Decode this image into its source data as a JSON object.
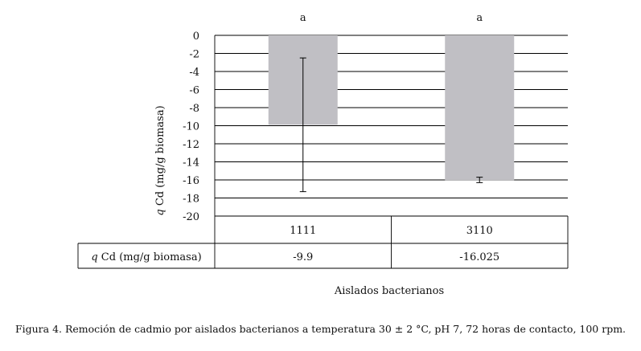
{
  "chart_data": {
    "type": "bar",
    "categories": [
      "1111",
      "3110"
    ],
    "series": [
      {
        "name": "q Cd (mg/g biomasa)",
        "values": [
          -9.9,
          -16.025
        ],
        "color": "#c0bfc4"
      }
    ],
    "error_bars": {
      "low": [
        -17.3,
        -16.3
      ],
      "high": [
        -2.5,
        -15.7
      ]
    },
    "significance_letters": [
      "a",
      "a"
    ],
    "ylim": [
      -20,
      0
    ],
    "yticks": [
      0,
      -2,
      -4,
      -6,
      -8,
      -10,
      -12,
      -14,
      -16,
      -18,
      -20
    ],
    "ylabel_prefix": "q",
    "ylabel_rest": " Cd (mg/g biomasa)",
    "xlabel": "Aislados bacterianos",
    "table": {
      "row_label_prefix": "q",
      "row_label_rest": " Cd (mg/g biomasa)",
      "values": [
        "-9.9",
        "-16.025"
      ]
    },
    "grid": true,
    "legend": "none"
  },
  "caption": "Figura 4. Remoción de cadmio por aislados bacterianos a temperatura 30 ± 2 °C, pH 7, 72 horas de contacto, 100 rpm."
}
